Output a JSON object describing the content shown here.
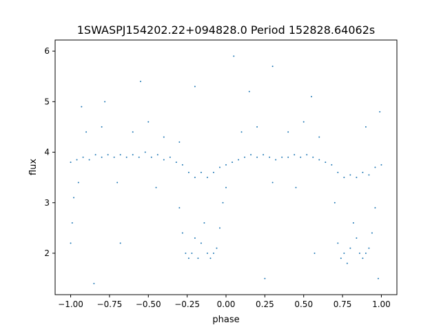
{
  "chart_data": {
    "type": "scatter",
    "title": "1SWASPJ154202.22+094828.0 Period 152828.64062s",
    "xlabel": "phase",
    "ylabel": "flux",
    "xlim": [
      -1.1,
      1.1
    ],
    "ylim": [
      1.18,
      6.22
    ],
    "xticks": [
      -1.0,
      -0.75,
      -0.5,
      -0.25,
      0.0,
      0.25,
      0.5,
      0.75,
      1.0
    ],
    "xtick_labels": [
      "−1.00",
      "−0.75",
      "−0.50",
      "−0.25",
      "0.00",
      "0.25",
      "0.50",
      "0.75",
      "1.00"
    ],
    "yticks": [
      2,
      3,
      4,
      5,
      6
    ],
    "ytick_labels": [
      "2",
      "3",
      "4",
      "5",
      "6"
    ],
    "grid": false,
    "color": "#1f77b4",
    "x": [
      -1.0,
      -0.96,
      -0.92,
      -0.88,
      -0.84,
      -0.8,
      -0.76,
      -0.72,
      -0.68,
      -0.64,
      -0.6,
      -0.56,
      -0.52,
      -0.48,
      -0.44,
      -0.4,
      -0.36,
      -0.32,
      -0.28,
      -0.24,
      -0.2,
      -0.16,
      -0.12,
      -0.08,
      -0.04,
      0.0,
      0.04,
      0.08,
      0.12,
      0.16,
      0.2,
      0.24,
      0.28,
      0.32,
      0.36,
      0.4,
      0.44,
      0.48,
      0.52,
      0.56,
      0.6,
      0.64,
      0.68,
      0.72,
      0.76,
      0.8,
      0.84,
      0.88,
      0.92,
      0.96,
      1.0,
      -0.3,
      -0.28,
      -0.26,
      -0.24,
      -0.22,
      -0.2,
      -0.18,
      -0.16,
      -0.14,
      -0.12,
      -0.1,
      -0.08,
      -0.06,
      -0.04,
      -0.02,
      0.0,
      0.7,
      0.72,
      0.74,
      0.76,
      0.78,
      0.8,
      0.82,
      0.84,
      0.86,
      0.88,
      0.9,
      0.92,
      0.94,
      0.96,
      -1.0,
      -0.99,
      -0.98,
      -0.9,
      -0.8,
      -0.7,
      -0.6,
      -0.5,
      -0.4,
      -0.3,
      0.1,
      0.2,
      0.3,
      0.4,
      0.5,
      0.6,
      0.9,
      -0.95,
      -0.45,
      0.45,
      -0.78,
      0.15,
      0.55,
      -0.55,
      0.05,
      0.3,
      -0.93,
      0.99,
      -0.2,
      -0.85,
      0.98,
      0.25,
      0.57,
      -0.68
    ],
    "y": [
      3.8,
      3.85,
      3.9,
      3.85,
      3.95,
      3.9,
      3.95,
      3.9,
      3.95,
      3.9,
      3.95,
      3.9,
      4.0,
      3.9,
      3.95,
      3.85,
      3.9,
      3.8,
      3.75,
      3.6,
      3.5,
      3.6,
      3.5,
      3.6,
      3.7,
      3.75,
      3.8,
      3.85,
      3.9,
      3.95,
      3.9,
      3.95,
      3.9,
      3.85,
      3.9,
      3.9,
      3.95,
      3.9,
      3.95,
      3.9,
      3.85,
      3.8,
      3.75,
      3.6,
      3.5,
      3.55,
      3.5,
      3.6,
      3.55,
      3.7,
      3.75,
      2.9,
      2.4,
      2.0,
      1.9,
      2.0,
      2.3,
      1.9,
      2.2,
      2.6,
      2.0,
      1.9,
      2.0,
      2.1,
      2.5,
      3.0,
      3.3,
      3.0,
      2.2,
      1.9,
      2.0,
      1.8,
      2.1,
      2.6,
      2.3,
      2.0,
      1.9,
      2.0,
      2.1,
      2.4,
      2.9,
      2.2,
      2.6,
      3.1,
      4.4,
      4.5,
      3.4,
      4.4,
      4.6,
      4.3,
      4.2,
      4.4,
      4.5,
      3.4,
      4.4,
      4.6,
      4.3,
      4.5,
      3.4,
      3.3,
      3.3,
      5.0,
      5.2,
      5.1,
      5.4,
      5.9,
      5.7,
      4.9,
      4.8,
      5.3,
      1.4,
      1.5,
      1.5,
      2.0,
      2.2
    ]
  }
}
